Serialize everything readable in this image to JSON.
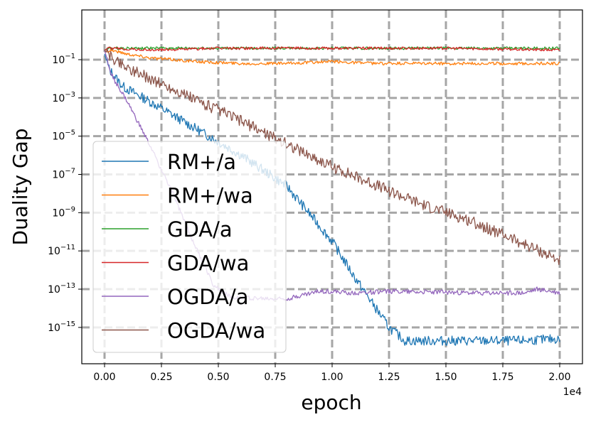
{
  "chart_data": {
    "type": "line",
    "xlabel": "epoch",
    "ylabel": "Duality Gap",
    "x_offset_label": "1e4",
    "xlim": [
      -1000,
      21000
    ],
    "ylim_log10": [
      -16.9,
      1.6
    ],
    "yscale": "log",
    "grid": true,
    "legend_position": "left",
    "x_ticks": [
      0,
      2500,
      5000,
      7500,
      10000,
      12500,
      15000,
      17500,
      20000
    ],
    "x_tick_labels": [
      "0.00",
      "0.25",
      "0.50",
      "0.75",
      "1.00",
      "1.25",
      "1.50",
      "1.75",
      "2.00"
    ],
    "y_ticks_log10": [
      -15,
      -13,
      -11,
      -9,
      -7,
      -5,
      -3,
      -1
    ],
    "y_tick_labels": [
      {
        "base": "10",
        "exp": "−15"
      },
      {
        "base": "10",
        "exp": "−13"
      },
      {
        "base": "10",
        "exp": "−11"
      },
      {
        "base": "10",
        "exp": "−9"
      },
      {
        "base": "10",
        "exp": "−7"
      },
      {
        "base": "10",
        "exp": "−5"
      },
      {
        "base": "10",
        "exp": "−3"
      },
      {
        "base": "10",
        "exp": "−1"
      }
    ],
    "series": [
      {
        "name": "RM+/a",
        "color": "#1f77b4",
        "points_log10": [
          [
            0,
            -0.7
          ],
          [
            200,
            -1.5
          ],
          [
            800,
            -2.4
          ],
          [
            2000,
            -3.2
          ],
          [
            4000,
            -4.6
          ],
          [
            6000,
            -6.0
          ],
          [
            8000,
            -7.6
          ],
          [
            10000,
            -10.5
          ],
          [
            11000,
            -12.4
          ],
          [
            12500,
            -15.0
          ],
          [
            13200,
            -15.7
          ],
          [
            14000,
            -15.7
          ],
          [
            16000,
            -15.7
          ],
          [
            18000,
            -15.7
          ],
          [
            20000,
            -15.6
          ]
        ],
        "noise": 0.25
      },
      {
        "name": "RM+/wa",
        "color": "#ff7f0e",
        "points_log10": [
          [
            0,
            -0.6
          ],
          [
            300,
            -0.5
          ],
          [
            1000,
            -0.7
          ],
          [
            2000,
            -0.9
          ],
          [
            4000,
            -1.1
          ],
          [
            6000,
            -1.2
          ],
          [
            8000,
            -1.2
          ],
          [
            10000,
            -1.1
          ],
          [
            12000,
            -1.2
          ],
          [
            14000,
            -1.2
          ],
          [
            16000,
            -1.2
          ],
          [
            18000,
            -1.2
          ],
          [
            20000,
            -1.2
          ]
        ],
        "noise": 0.08
      },
      {
        "name": "GDA/a",
        "color": "#2ca02c",
        "points_log10": [
          [
            0,
            -0.5
          ],
          [
            200,
            -0.4
          ],
          [
            2000,
            -0.4
          ],
          [
            5000,
            -0.4
          ],
          [
            10000,
            -0.4
          ],
          [
            15000,
            -0.4
          ],
          [
            20000,
            -0.4
          ]
        ],
        "noise": 0.07
      },
      {
        "name": "GDA/wa",
        "color": "#d62728",
        "points_log10": [
          [
            0,
            -0.5
          ],
          [
            200,
            -0.4
          ],
          [
            2000,
            -0.5
          ],
          [
            5000,
            -0.4
          ],
          [
            10000,
            -0.4
          ],
          [
            15000,
            -0.4
          ],
          [
            20000,
            -0.5
          ]
        ],
        "noise": 0.07
      },
      {
        "name": "OGDA/a",
        "color": "#9467bd",
        "points_log10": [
          [
            0,
            -0.5
          ],
          [
            300,
            -1.8
          ],
          [
            1000,
            -3.2
          ],
          [
            2000,
            -5.5
          ],
          [
            3000,
            -8.0
          ],
          [
            4000,
            -10.8
          ],
          [
            4800,
            -12.8
          ],
          [
            5500,
            -13.4
          ],
          [
            7000,
            -13.5
          ],
          [
            8000,
            -13.5
          ],
          [
            9500,
            -13.1
          ],
          [
            11000,
            -13.2
          ],
          [
            13000,
            -13.1
          ],
          [
            16000,
            -13.2
          ],
          [
            18500,
            -13.2
          ],
          [
            19000,
            -13.0
          ],
          [
            20000,
            -13.2
          ]
        ],
        "noise": 0.12
      },
      {
        "name": "OGDA/wa",
        "color": "#8c564b",
        "points_log10": [
          [
            0,
            -0.5
          ],
          [
            300,
            -0.9
          ],
          [
            1000,
            -1.4
          ],
          [
            2000,
            -2.0
          ],
          [
            4000,
            -3.1
          ],
          [
            6000,
            -4.2
          ],
          [
            8000,
            -5.4
          ],
          [
            10000,
            -6.6
          ],
          [
            12000,
            -7.6
          ],
          [
            14000,
            -8.6
          ],
          [
            16000,
            -9.4
          ],
          [
            18000,
            -10.4
          ],
          [
            20000,
            -11.5
          ]
        ],
        "noise": 0.3
      }
    ]
  }
}
